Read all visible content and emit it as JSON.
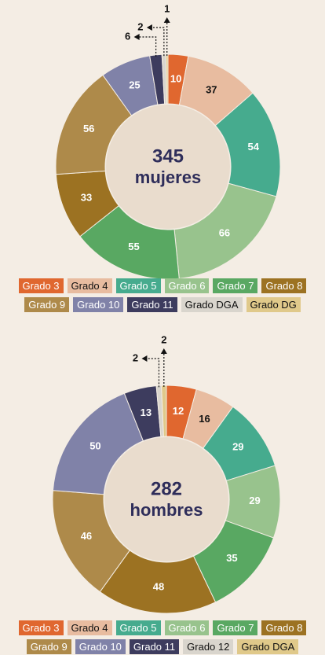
{
  "chart_data": [
    {
      "type": "pie",
      "center_value": 345,
      "center_label": "mujeres",
      "categories": [
        "Grado 3",
        "Grado 4",
        "Grado 5",
        "Grado 6",
        "Grado 7",
        "Grado 8",
        "Grado 9",
        "Grado 10",
        "Grado 11",
        "Grado DGA",
        "Grado DG"
      ],
      "values": [
        10,
        37,
        54,
        66,
        55,
        33,
        56,
        25,
        6,
        2,
        1
      ],
      "colors": [
        "#e0672f",
        "#e8bca0",
        "#46ab8e",
        "#98c38d",
        "#59a862",
        "#9c7222",
        "#ae8a4a",
        "#8082a8",
        "#3d3c5e",
        "#d9d5cd",
        "#e0c98a"
      ]
    },
    {
      "type": "pie",
      "center_value": 282,
      "center_label": "hombres",
      "categories": [
        "Grado 3",
        "Grado 4",
        "Grado 5",
        "Grado 6",
        "Grado 7",
        "Grado 8",
        "Grado 9",
        "Grado 10",
        "Grado 11",
        "Grado 12",
        "Grado DGA"
      ],
      "values": [
        12,
        16,
        29,
        29,
        35,
        48,
        46,
        50,
        13,
        2,
        2
      ],
      "colors": [
        "#e0672f",
        "#e8bca0",
        "#46ab8e",
        "#98c38d",
        "#59a862",
        "#9c7222",
        "#ae8a4a",
        "#8082a8",
        "#3d3c5e",
        "#d9d5cd",
        "#e0c98a"
      ]
    }
  ]
}
